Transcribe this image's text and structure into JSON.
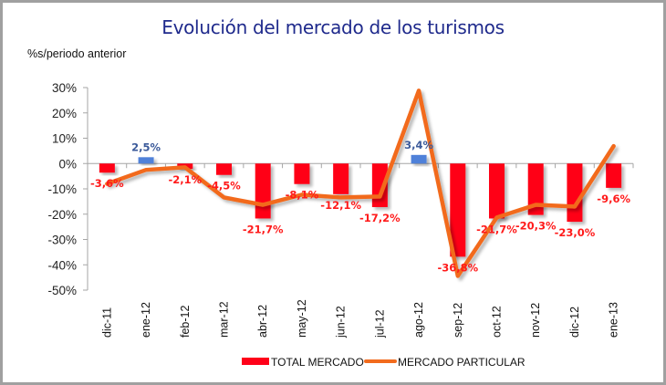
{
  "chart_data": {
    "type": "bar",
    "title": "Evolución del mercado de los turismos",
    "ylabel": "%s/periodo anterior",
    "xlabel": "",
    "ylim": [
      -50,
      30
    ],
    "yticks": [
      30,
      20,
      10,
      0,
      -10,
      -20,
      -30,
      -40,
      -50
    ],
    "ytick_labels": [
      "30%",
      "20%",
      "10%",
      "0%",
      "-10%",
      "-20%",
      "-30%",
      "-40%",
      "-50%"
    ],
    "categories": [
      "dic-11",
      "ene-12",
      "feb-12",
      "mar-12",
      "abr-12",
      "may-12",
      "jun-12",
      "jul-12",
      "ago-12",
      "sep-12",
      "oct-12",
      "nov-12",
      "dic-12",
      "ene-13"
    ],
    "grid": false,
    "legend_position": "bottom",
    "series": [
      {
        "name": "TOTAL MERCADO",
        "type": "bar",
        "color": "#ff0019",
        "positive_color": "#4f81d9",
        "values": [
          -3.6,
          2.5,
          -2.1,
          -4.5,
          -21.7,
          -8.1,
          -12.1,
          -17.2,
          3.4,
          -36.8,
          -21.7,
          -20.3,
          -23.0,
          -9.6
        ],
        "labels": [
          "-3,6%",
          "2,5%",
          "-2,1%",
          "-4,5%",
          "-21,7%",
          "-8,1%",
          "-12,1%",
          "-17,2%",
          "3,4%",
          "-36,8%",
          "-21,7%",
          "-20,3%",
          "-23,0%",
          "-9,6%"
        ],
        "label_color_negative": "#ff1a1a",
        "label_color_positive": "#3b5a9a"
      },
      {
        "name": "MERCADO PARTICULAR",
        "type": "line",
        "color": "#f26b1d",
        "values": [
          -8.0,
          -2.5,
          -1.5,
          -13.4,
          -16.3,
          -12.3,
          -13.4,
          -13.0,
          28.8,
          -44.4,
          -21.3,
          -16.3,
          -17.0,
          6.9
        ]
      }
    ]
  }
}
